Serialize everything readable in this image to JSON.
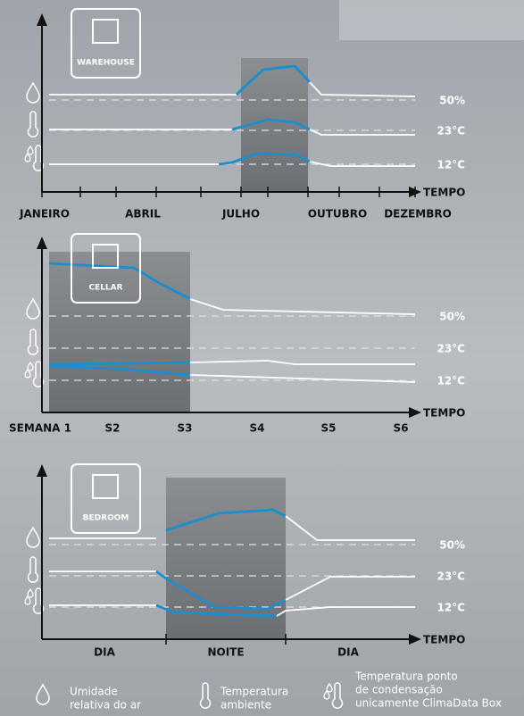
{
  "panels": [
    {
      "icon_label": "WAREHOUSE",
      "levels": [
        "50%",
        "23°C",
        "12°C"
      ],
      "axis_label": "TEMPO",
      "x_labels": [
        "JANEIRO",
        "ABRIL",
        "JULHO",
        "OUTUBRO",
        "DEZEMBRO"
      ]
    },
    {
      "icon_label": "CELLAR",
      "levels": [
        "50%",
        "23°C",
        "12°C"
      ],
      "axis_label": "TEMPO",
      "x_labels": [
        "SEMANA 1",
        "S2",
        "S3",
        "S4",
        "S5",
        "S6"
      ]
    },
    {
      "icon_label": "BEDROOM",
      "levels": [
        "50%",
        "23°C",
        "12°C"
      ],
      "axis_label": "TEMPO",
      "x_labels": [
        "DIA",
        "NOITE",
        "DIA"
      ]
    }
  ],
  "legend": [
    {
      "lines": [
        "Umidade",
        "relativa do ar"
      ]
    },
    {
      "lines": [
        "Temperatura",
        "ambiente"
      ]
    },
    {
      "lines": [
        "Temperatura ponto",
        "de condensação",
        "unicamente ClimaData Box"
      ]
    }
  ]
}
